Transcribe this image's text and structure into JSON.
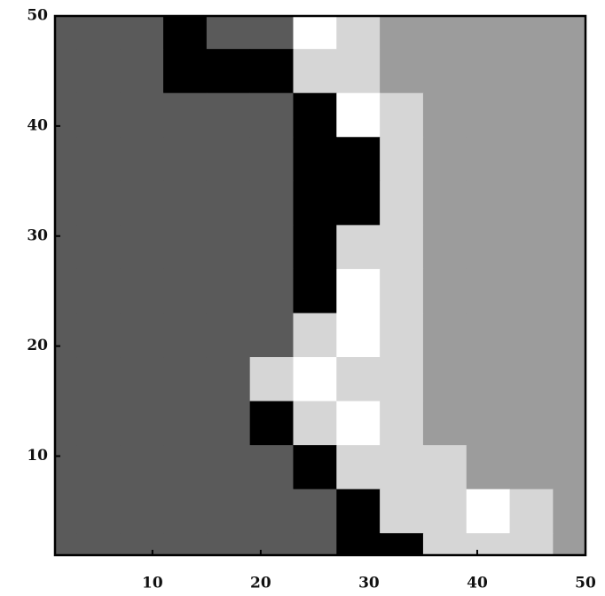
{
  "chart_data": {
    "type": "contour",
    "x": [
      1,
      5,
      9,
      13,
      17,
      21,
      25,
      29,
      33,
      37,
      41,
      45,
      49
    ],
    "y": [
      49,
      45,
      41,
      37,
      33,
      29,
      25,
      21,
      17,
      13,
      9,
      5,
      1
    ],
    "z": [
      [
        1,
        1,
        1,
        0,
        1,
        1,
        4,
        3,
        2,
        2,
        2,
        2,
        2
      ],
      [
        1,
        1,
        1,
        0,
        0,
        0,
        3,
        3,
        2,
        2,
        2,
        2,
        2
      ],
      [
        1,
        1,
        1,
        1,
        1,
        1,
        0,
        4,
        3,
        2,
        2,
        2,
        2
      ],
      [
        1,
        1,
        1,
        1,
        1,
        1,
        0,
        0,
        3,
        2,
        2,
        2,
        2
      ],
      [
        1,
        1,
        1,
        1,
        1,
        1,
        0,
        0,
        3,
        2,
        2,
        2,
        2
      ],
      [
        1,
        1,
        1,
        1,
        1,
        1,
        0,
        3,
        3,
        2,
        2,
        2,
        2
      ],
      [
        1,
        1,
        1,
        1,
        1,
        1,
        0,
        4,
        3,
        2,
        2,
        2,
        2
      ],
      [
        1,
        1,
        1,
        1,
        1,
        1,
        3,
        4,
        3,
        2,
        2,
        2,
        2
      ],
      [
        1,
        1,
        1,
        1,
        1,
        3,
        4,
        3,
        3,
        2,
        2,
        2,
        2
      ],
      [
        1,
        1,
        1,
        1,
        1,
        0,
        3,
        4,
        3,
        2,
        2,
        2,
        2
      ],
      [
        1,
        1,
        1,
        1,
        1,
        1,
        0,
        3,
        3,
        3,
        2,
        2,
        2
      ],
      [
        1,
        1,
        1,
        1,
        1,
        1,
        1,
        0,
        3,
        3,
        4,
        3,
        2
      ],
      [
        1,
        1,
        1,
        1,
        1,
        1,
        1,
        0,
        0,
        3,
        3,
        3,
        2
      ]
    ],
    "colormap": [
      "#000000",
      "#5a5a5a",
      "#9c9c9c",
      "#d6d6d6",
      "#ffffff"
    ],
    "xlim": [
      1,
      50
    ],
    "ylim": [
      1,
      50
    ],
    "xticks": [
      10,
      20,
      30,
      40,
      50
    ],
    "yticks": [
      10,
      20,
      30,
      40,
      50
    ]
  }
}
